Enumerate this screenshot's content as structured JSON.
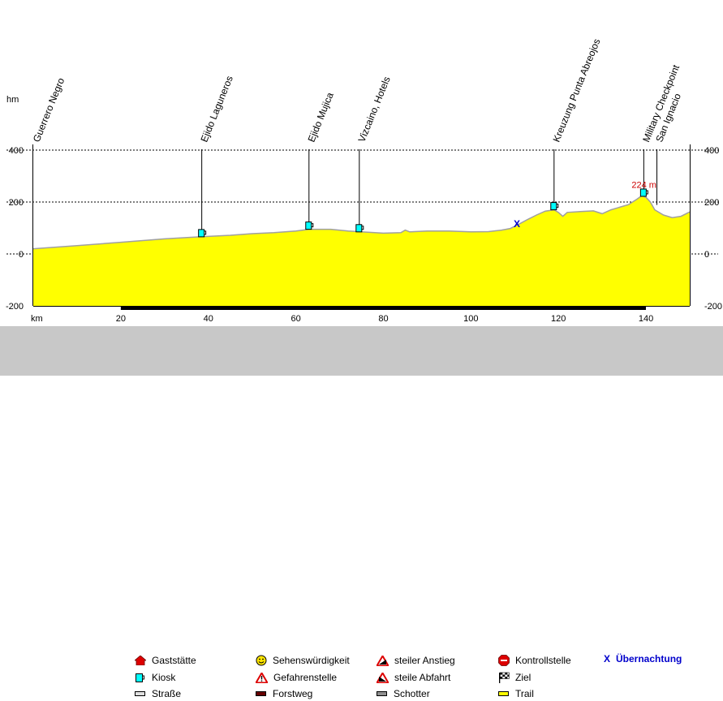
{
  "chart_data": {
    "type": "area",
    "y_unit_label": "hm",
    "x_unit_label": "km",
    "xlim": [
      0,
      150
    ],
    "ylim": [
      -200,
      400
    ],
    "x_ticks": [
      "20",
      "40",
      "60",
      "80",
      "100",
      "120",
      "140"
    ],
    "y_ticks_left": [
      "400",
      "200",
      "0",
      "-200"
    ],
    "y_ticks_right": [
      "400",
      "200",
      "0",
      "-200"
    ],
    "grid": "dashed at 200 and 400",
    "fill_color": "#ffff00",
    "outline_color": "#a0a0a0",
    "profile": [
      {
        "x": 0,
        "y": 20
      },
      {
        "x": 10,
        "y": 32
      },
      {
        "x": 20,
        "y": 45
      },
      {
        "x": 30,
        "y": 58
      },
      {
        "x": 38,
        "y": 66
      },
      {
        "x": 45,
        "y": 72
      },
      {
        "x": 50,
        "y": 78
      },
      {
        "x": 55,
        "y": 82
      },
      {
        "x": 60,
        "y": 88
      },
      {
        "x": 63,
        "y": 95
      },
      {
        "x": 68,
        "y": 95
      },
      {
        "x": 72,
        "y": 88
      },
      {
        "x": 75,
        "y": 85
      },
      {
        "x": 80,
        "y": 80
      },
      {
        "x": 84,
        "y": 82
      },
      {
        "x": 85,
        "y": 92
      },
      {
        "x": 86,
        "y": 85
      },
      {
        "x": 90,
        "y": 88
      },
      {
        "x": 95,
        "y": 88
      },
      {
        "x": 100,
        "y": 85
      },
      {
        "x": 104,
        "y": 86
      },
      {
        "x": 107,
        "y": 92
      },
      {
        "x": 109,
        "y": 98
      },
      {
        "x": 111,
        "y": 115
      },
      {
        "x": 113,
        "y": 133
      },
      {
        "x": 115,
        "y": 150
      },
      {
        "x": 117,
        "y": 165
      },
      {
        "x": 119,
        "y": 170
      },
      {
        "x": 120,
        "y": 160
      },
      {
        "x": 121,
        "y": 145
      },
      {
        "x": 122,
        "y": 160
      },
      {
        "x": 125,
        "y": 163
      },
      {
        "x": 128,
        "y": 166
      },
      {
        "x": 130,
        "y": 155
      },
      {
        "x": 132,
        "y": 170
      },
      {
        "x": 134,
        "y": 180
      },
      {
        "x": 136,
        "y": 190
      },
      {
        "x": 138,
        "y": 212
      },
      {
        "x": 139,
        "y": 224
      },
      {
        "x": 140,
        "y": 218
      },
      {
        "x": 141,
        "y": 200
      },
      {
        "x": 142,
        "y": 170
      },
      {
        "x": 144,
        "y": 150
      },
      {
        "x": 146,
        "y": 140
      },
      {
        "x": 148,
        "y": 145
      },
      {
        "x": 150,
        "y": 162
      }
    ],
    "annotation": {
      "text": "224 m",
      "x": 139,
      "y": 224,
      "color": "#cc0000"
    },
    "overnight_marker": {
      "symbol": "X",
      "x": 110.5,
      "y": 115,
      "color": "#0000cc"
    },
    "waypoints": [
      {
        "name": "Guerrero Negro",
        "x": 0,
        "y": 20,
        "line": false,
        "kiosk": false
      },
      {
        "name": "Ejido Laguneros",
        "x": 38.5,
        "y": 66,
        "line": true,
        "kiosk": true
      },
      {
        "name": "Ejido Mujica",
        "x": 63,
        "y": 95,
        "line": true,
        "kiosk": true
      },
      {
        "name": "Vizcaino, Hotels",
        "x": 74.5,
        "y": 85,
        "line": true,
        "kiosk": true
      },
      {
        "name": "Kreuzung Punta Abreojos",
        "x": 119,
        "y": 170,
        "line": true,
        "kiosk": true
      },
      {
        "name": "Military Checkpoint",
        "x": 139.5,
        "y": 222,
        "line": true,
        "kiosk": true
      },
      {
        "name": "San Ignacio",
        "x": 142.5,
        "y": 170,
        "line": true,
        "kiosk": false
      }
    ],
    "surface_segments": [
      {
        "x0": 0,
        "x1": 20,
        "surface": "Straße"
      },
      {
        "x0": 20,
        "x1": 140,
        "surface": "Forstweg"
      },
      {
        "x0": 140,
        "x1": 150,
        "surface": "Straße"
      }
    ]
  },
  "legend": {
    "gaststaette": "Gaststätte",
    "kiosk": "Kiosk",
    "strasse": "Straße",
    "sehens": "Sehenswürdigkeit",
    "gefahren": "Gefahrenstelle",
    "forstweg": "Forstweg",
    "anstieg": "steiler Anstieg",
    "abfahrt": "steile Abfahrt",
    "schotter": "Schotter",
    "kontroll": "Kontrollstelle",
    "ziel": "Ziel",
    "trail": "Trail",
    "uebernachtung_symbol": "X",
    "uebernachtung": "Übernachtung"
  }
}
